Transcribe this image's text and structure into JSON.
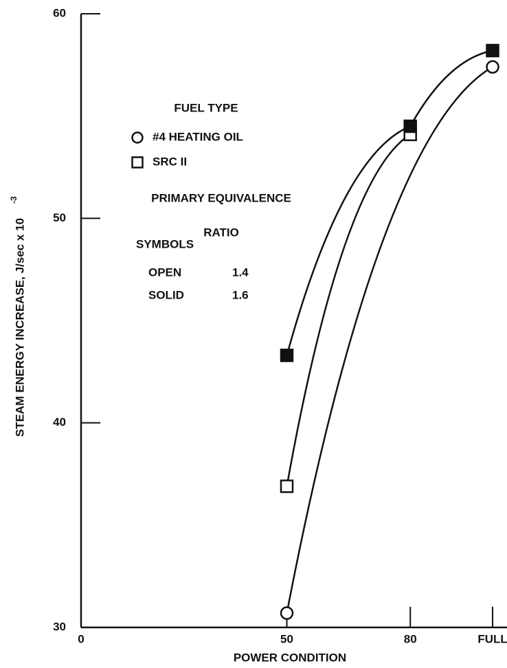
{
  "chart_data": {
    "type": "line",
    "xlabel": "POWER CONDITION",
    "ylabel": "STEAM ENERGY INCREASE,  J/sec x 10",
    "ylabel_exponent": "-3",
    "xlim": [
      0,
      103.5
    ],
    "ylim": [
      30,
      60
    ],
    "xticks": [
      0,
      50,
      80,
      {
        "value": 100,
        "label": "FULL"
      }
    ],
    "yticks": [
      30,
      40,
      50,
      60
    ],
    "color": "#111111",
    "legend": {
      "fuel_title": "FUEL TYPE",
      "fuels": [
        {
          "name": "#4 HEATING OIL",
          "marker": "circle"
        },
        {
          "name": "SRC II",
          "marker": "square"
        }
      ],
      "ratio_title": [
        "PRIMARY EQUIVALENCE",
        "RATIO"
      ],
      "symbols_title": "SYMBOLS",
      "ratios": [
        {
          "name": "OPEN",
          "value": 1.4,
          "fill": "open"
        },
        {
          "name": "SOLID",
          "value": 1.6,
          "fill": "solid"
        }
      ]
    },
    "series": [
      {
        "marker": "circle",
        "fill": "open",
        "x": [
          50,
          100
        ],
        "values": [
          30.7,
          57.4
        ]
      },
      {
        "marker": "square",
        "fill": "open",
        "x": [
          50,
          80
        ],
        "values": [
          36.9,
          54.1
        ]
      },
      {
        "marker": "square",
        "fill": "solid",
        "x": [
          50,
          80,
          100
        ],
        "values": [
          43.3,
          54.5,
          58.2
        ]
      }
    ]
  }
}
